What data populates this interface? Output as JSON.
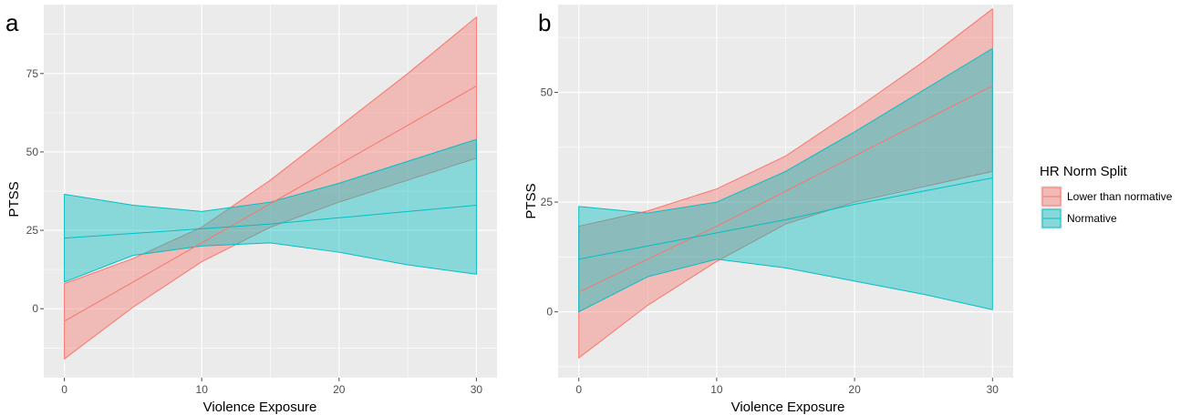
{
  "colors": {
    "lower": "#F8766D",
    "normative": "#00BFC4",
    "panel_bg": "#EBEBEB",
    "grid": "#FFFFFF",
    "tick": "#4D4D4D"
  },
  "legend": {
    "title": "HR Norm Split",
    "items": [
      {
        "label": "Lower than normative",
        "color": "#F8766D",
        "icon": "legend-key-lower"
      },
      {
        "label": "Normative",
        "color": "#00BFC4",
        "icon": "legend-key-normative"
      }
    ]
  },
  "chart_data": [
    {
      "type": "area",
      "panel_label": "a",
      "xlabel": "Violence Exposure",
      "ylabel": "PTSS",
      "xlim": [
        -1.5,
        31.5
      ],
      "ylim": [
        -22,
        97
      ],
      "x_ticks": [
        0,
        10,
        20,
        30
      ],
      "y_ticks": [
        0,
        25,
        50,
        75
      ],
      "grid": true,
      "legend_position": "right",
      "x": [
        0,
        5,
        10,
        15,
        20,
        25,
        30
      ],
      "series": [
        {
          "name": "Lower than normative",
          "color": "#F8766D",
          "fit": [
            -4,
            8.5,
            21,
            33.5,
            46,
            58.5,
            71
          ],
          "upper": [
            8,
            16,
            26,
            41,
            58,
            75,
            93
          ],
          "lower": [
            -16,
            0.5,
            15,
            26,
            34,
            41,
            48
          ]
        },
        {
          "name": "Normative",
          "color": "#00BFC4",
          "fit": [
            22.5,
            24,
            25.5,
            27,
            29,
            31,
            33
          ],
          "upper": [
            36.5,
            33,
            31,
            34,
            40,
            47,
            54
          ],
          "lower": [
            8.5,
            17,
            20,
            21,
            18,
            14,
            11
          ]
        }
      ]
    },
    {
      "type": "area",
      "panel_label": "b",
      "xlabel": "Violence Exposure",
      "ylabel": "PTSS",
      "xlim": [
        -1.5,
        31.5
      ],
      "ylim": [
        -15,
        70
      ],
      "x_ticks": [
        0,
        10,
        20,
        30
      ],
      "y_ticks": [
        0,
        25,
        50
      ],
      "grid": true,
      "legend_position": "right",
      "x": [
        0,
        5,
        10,
        15,
        20,
        25,
        30
      ],
      "series": [
        {
          "name": "Lower than normative",
          "color": "#F8766D",
          "fit": [
            4.5,
            12,
            19.5,
            27.5,
            35.5,
            43.5,
            51.5
          ],
          "upper": [
            19.5,
            23,
            28,
            35.5,
            46,
            57,
            69
          ],
          "lower": [
            -10.5,
            1.5,
            11.5,
            20,
            25,
            28.5,
            32
          ]
        },
        {
          "name": "Normative",
          "color": "#00BFC4",
          "fit": [
            12,
            15,
            18,
            21,
            24.5,
            27.5,
            30.5
          ],
          "upper": [
            24,
            22.5,
            25,
            32,
            41,
            50.5,
            60
          ],
          "lower": [
            0,
            8,
            12,
            10,
            7,
            4,
            0.5
          ]
        }
      ]
    }
  ]
}
